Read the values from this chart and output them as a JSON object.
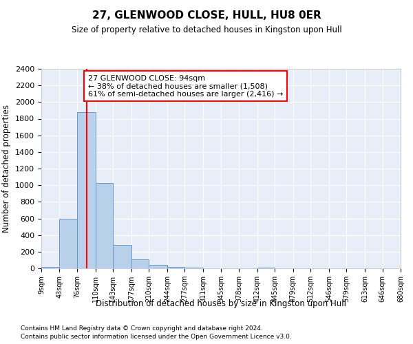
{
  "title": "27, GLENWOOD CLOSE, HULL, HU8 0ER",
  "subtitle": "Size of property relative to detached houses in Kingston upon Hull",
  "xlabel": "Distribution of detached houses by size in Kingston upon Hull",
  "ylabel": "Number of detached properties",
  "footer1": "Contains HM Land Registry data © Crown copyright and database right 2024.",
  "footer2": "Contains public sector information licensed under the Open Government Licence v3.0.",
  "annotation_line1": "27 GLENWOOD CLOSE: 94sqm",
  "annotation_line2": "← 38% of detached houses are smaller (1,508)",
  "annotation_line3": "61% of semi-detached houses are larger (2,416) →",
  "bar_color": "#b8d0ea",
  "bar_edge_color": "#6699cc",
  "red_line_x": 94,
  "ylim": [
    0,
    2400
  ],
  "yticks": [
    0,
    200,
    400,
    600,
    800,
    1000,
    1200,
    1400,
    1600,
    1800,
    2000,
    2200,
    2400
  ],
  "bin_edges": [
    9,
    43,
    76,
    110,
    143,
    177,
    210,
    244,
    277,
    311,
    345,
    378,
    412,
    445,
    479,
    512,
    546,
    579,
    613,
    646,
    680
  ],
  "bar_heights": [
    20,
    600,
    1880,
    1030,
    280,
    110,
    45,
    15,
    5,
    0,
    0,
    0,
    5,
    0,
    0,
    0,
    0,
    0,
    0,
    0
  ],
  "xtick_labels": [
    "9sqm",
    "43sqm",
    "76sqm",
    "110sqm",
    "143sqm",
    "177sqm",
    "210sqm",
    "244sqm",
    "277sqm",
    "311sqm",
    "345sqm",
    "378sqm",
    "412sqm",
    "445sqm",
    "479sqm",
    "512sqm",
    "546sqm",
    "579sqm",
    "613sqm",
    "646sqm",
    "680sqm"
  ],
  "background_color": "#e8eef8"
}
